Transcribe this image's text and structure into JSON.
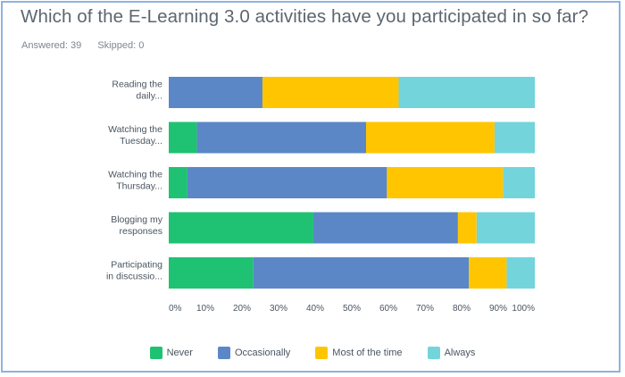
{
  "header": {
    "title": "Which of the E-Learning 3.0 activities have you participated in so far?",
    "answered": "Answered: 39",
    "skipped": "Skipped: 0"
  },
  "chart_data": {
    "type": "bar",
    "orientation": "horizontal",
    "stacked": true,
    "categories": [
      [
        "Reading the",
        "daily..."
      ],
      [
        "Watching the",
        "Tuesday..."
      ],
      [
        "Watching the",
        "Thursday..."
      ],
      [
        "Blogging my",
        "responses"
      ],
      [
        "Participating",
        "in discussio..."
      ]
    ],
    "series": [
      {
        "name": "Never",
        "color": "#1fc272",
        "values": [
          0,
          7.7,
          5.1,
          39.5,
          23.1
        ]
      },
      {
        "name": "Occasionally",
        "color": "#5b87c7",
        "values": [
          25.6,
          46.2,
          54.5,
          39.5,
          58.9
        ]
      },
      {
        "name": "Most of the time",
        "color": "#ffc600",
        "values": [
          37.2,
          35.1,
          31.7,
          5.1,
          10.3
        ]
      },
      {
        "name": "Always",
        "color": "#73d4dc",
        "values": [
          37.2,
          11.0,
          8.7,
          15.9,
          7.7
        ]
      }
    ],
    "xticks": [
      "0%",
      "10%",
      "20%",
      "30%",
      "40%",
      "50%",
      "60%",
      "70%",
      "80%",
      "90%",
      "100%"
    ],
    "xlim": [
      0,
      100
    ],
    "grid": false,
    "legend": "bottom"
  }
}
